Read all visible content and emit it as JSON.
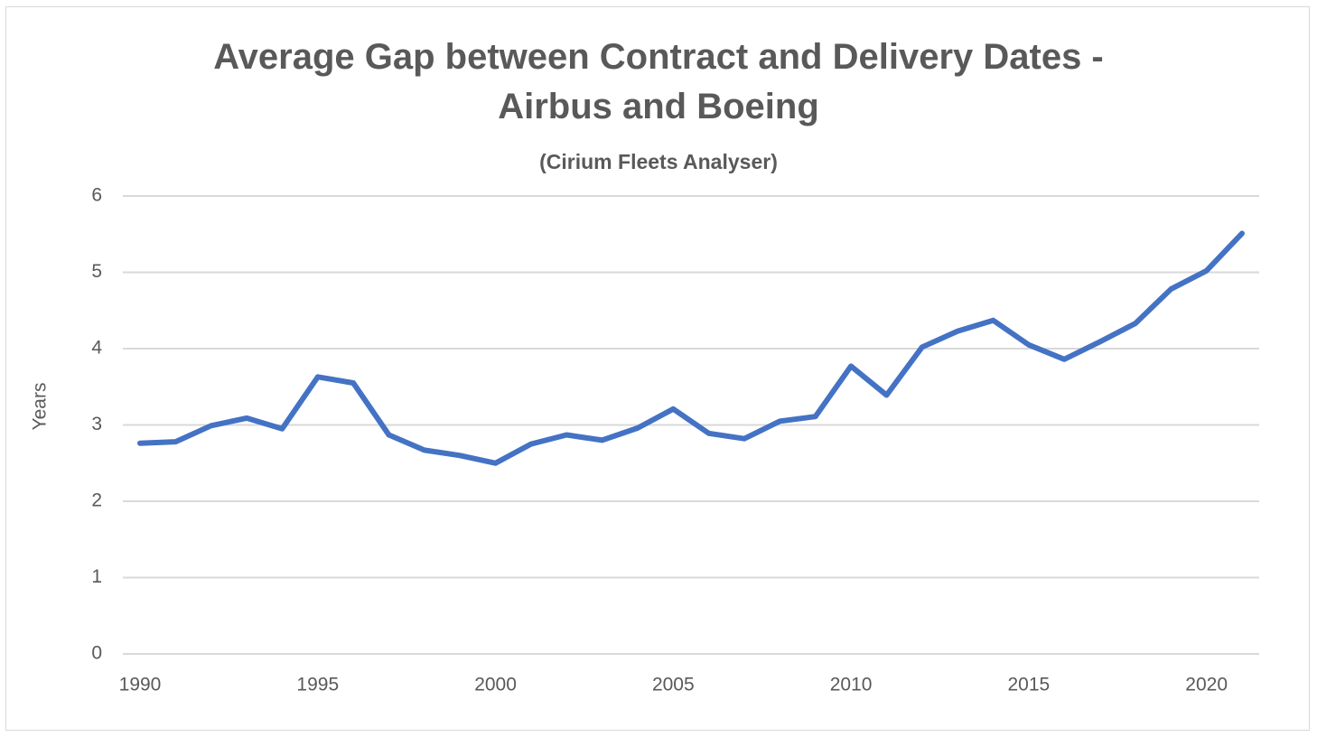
{
  "chart_data": {
    "type": "line",
    "title_line1": "Average Gap between Contract and Delivery Dates  -",
    "title_line2": "Airbus and Boeing",
    "subtitle": "(Cirium Fleets Analyser)",
    "ylabel": "Years",
    "xlabel": "",
    "ylim": [
      0,
      6
    ],
    "yticks": [
      "0",
      "1",
      "2",
      "3",
      "4",
      "5",
      "6"
    ],
    "xticks": [
      "1990",
      "1995",
      "2000",
      "2005",
      "2010",
      "2015",
      "2020"
    ],
    "xtick_values": [
      1990,
      1995,
      2000,
      2005,
      2010,
      2015,
      2020
    ],
    "xlim": [
      1990,
      2021
    ],
    "grid": true,
    "legend": "none",
    "line_color": "#4472c4",
    "x": [
      1990,
      1991,
      1992,
      1993,
      1994,
      1995,
      1996,
      1997,
      1998,
      1999,
      2000,
      2001,
      2002,
      2003,
      2004,
      2005,
      2006,
      2007,
      2008,
      2009,
      2010,
      2011,
      2012,
      2013,
      2014,
      2015,
      2016,
      2017,
      2018,
      2019,
      2020,
      2021
    ],
    "series": [
      {
        "values": [
          2.76,
          2.78,
          2.99,
          3.09,
          2.95,
          3.63,
          3.55,
          2.87,
          2.67,
          2.6,
          2.5,
          2.75,
          2.87,
          2.8,
          2.96,
          3.21,
          2.89,
          2.82,
          3.05,
          3.11,
          3.77,
          3.39,
          4.02,
          4.23,
          4.37,
          4.05,
          3.86,
          4.09,
          4.33,
          4.78,
          5.02,
          5.51
        ]
      }
    ]
  }
}
